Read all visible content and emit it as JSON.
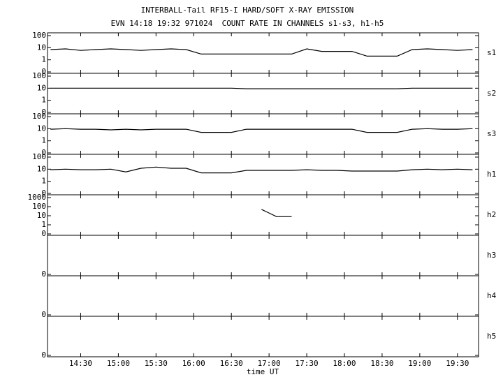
{
  "chart_data": {
    "type": "line",
    "title": "INTERBALL-Tail RF15-I HARD/SOFT X-RAY EMISSION",
    "subtitle": "EVN 14:18 19:32 971024  COUNT RATE IN CHANNELS s1-s3, h1-h5",
    "x_label": "time UT",
    "color": "#000000",
    "log": true,
    "x": [
      14.1,
      14.3,
      14.5,
      14.7,
      14.9,
      15.1,
      15.3,
      15.5,
      15.7,
      15.9,
      16.1,
      16.3,
      16.5,
      16.7,
      16.9,
      17.1,
      17.3,
      17.5,
      17.7,
      17.9,
      18.1,
      18.3,
      18.5,
      18.7,
      18.9,
      19.1,
      19.3,
      19.5,
      19.7
    ],
    "xlim": [
      14.06,
      19.78
    ],
    "xticks": [
      {
        "value": 14.5,
        "label": "14:30"
      },
      {
        "value": 15,
        "label": "15:00"
      },
      {
        "value": 15.5,
        "label": "15:30"
      },
      {
        "value": 16,
        "label": "16:00"
      },
      {
        "value": 16.5,
        "label": "16:30"
      },
      {
        "value": 17,
        "label": "17:00"
      },
      {
        "value": 17.5,
        "label": "17:30"
      },
      {
        "value": 18,
        "label": "18:00"
      },
      {
        "value": 18.5,
        "label": "18:30"
      },
      {
        "value": 19,
        "label": "19:00"
      },
      {
        "value": 19.5,
        "label": "19:30"
      }
    ],
    "panels": [
      {
        "name": "s1",
        "ylim": [
          0,
          100
        ],
        "yticks": [
          0,
          1,
          10,
          100
        ],
        "values": [
          7,
          8,
          6,
          7,
          8,
          7,
          6,
          7,
          8,
          7,
          3,
          3,
          3,
          3,
          3,
          3,
          3,
          8,
          5,
          5,
          5,
          2,
          2,
          2,
          7,
          8,
          7,
          6,
          7
        ]
      },
      {
        "name": "s2",
        "ylim": [
          0,
          100
        ],
        "yticks": [
          0,
          1,
          10,
          100
        ],
        "values": [
          10,
          10,
          10,
          10,
          10,
          10,
          10,
          10,
          10,
          10,
          10,
          10,
          10,
          9,
          9,
          9,
          9,
          9,
          9,
          9,
          9,
          9,
          9,
          9,
          10,
          10,
          10,
          10,
          10
        ]
      },
      {
        "name": "s3",
        "ylim": [
          0,
          100
        ],
        "yticks": [
          0,
          1,
          10,
          100
        ],
        "values": [
          9,
          10,
          9,
          9,
          8,
          9,
          8,
          9,
          9,
          9,
          5,
          5,
          5,
          9,
          9,
          9,
          9,
          9,
          9,
          9,
          9,
          5,
          5,
          5,
          9,
          10,
          9,
          9,
          10
        ]
      },
      {
        "name": "h1",
        "ylim": [
          0,
          100
        ],
        "yticks": [
          0,
          1,
          10,
          100
        ],
        "values": [
          9,
          10,
          9,
          9,
          10,
          6,
          12,
          15,
          12,
          12,
          5,
          5,
          5,
          8,
          8,
          8,
          8,
          9,
          8,
          8,
          7,
          7,
          7,
          7,
          9,
          10,
          9,
          10,
          9
        ]
      },
      {
        "name": "h2",
        "ylim": [
          0,
          1000
        ],
        "yticks": [
          0,
          1,
          10,
          100,
          1000
        ],
        "values": [
          null,
          null,
          null,
          null,
          null,
          null,
          null,
          null,
          null,
          null,
          null,
          null,
          null,
          null,
          50,
          8,
          8,
          null,
          null,
          null,
          null,
          null,
          null,
          null,
          null,
          null,
          null,
          null,
          null
        ]
      },
      {
        "name": "h3",
        "ylim": [
          0,
          1
        ],
        "yticks": [
          0
        ]
      },
      {
        "name": "h4",
        "ylim": [
          0,
          1
        ],
        "yticks": [
          0
        ]
      },
      {
        "name": "h5",
        "ylim": [
          0,
          1
        ],
        "yticks": [
          0
        ]
      }
    ]
  }
}
